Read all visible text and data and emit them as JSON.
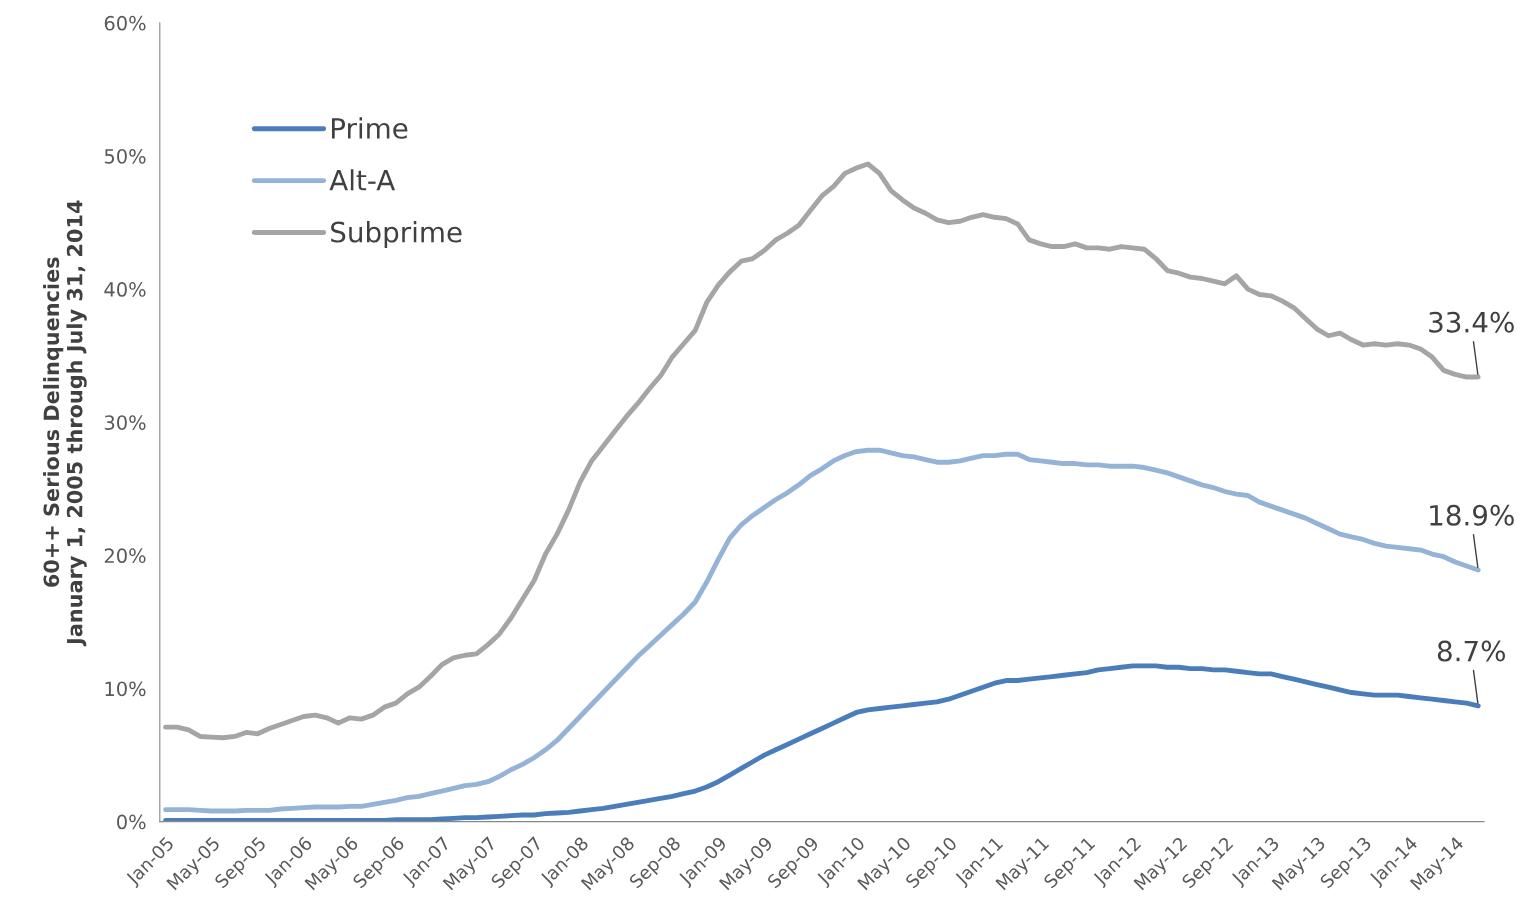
{
  "chart_data": {
    "type": "line",
    "ylabel": "60++ Serious Delinquencies\nJanuary 1, 2005 through July 31, 2014",
    "categories": [
      "Jan-05",
      null,
      null,
      null,
      "May-05",
      null,
      null,
      null,
      "Sep-05",
      null,
      null,
      null,
      "Jan-06",
      null,
      null,
      null,
      "May-06",
      null,
      null,
      null,
      "Sep-06",
      null,
      null,
      null,
      "Jan-07",
      null,
      null,
      null,
      "May-07",
      null,
      null,
      null,
      "Sep-07",
      null,
      null,
      null,
      "Jan-08",
      null,
      null,
      null,
      "May-08",
      null,
      null,
      null,
      "Sep-08",
      null,
      null,
      null,
      "Jan-09",
      null,
      null,
      null,
      "May-09",
      null,
      null,
      null,
      "Sep-09",
      null,
      null,
      null,
      "Jan-10",
      null,
      null,
      null,
      "May-10",
      null,
      null,
      null,
      "Sep-10",
      null,
      null,
      null,
      "Jan-11",
      null,
      null,
      null,
      "May-11",
      null,
      null,
      null,
      "Sep-11",
      null,
      null,
      null,
      "Jan-12",
      null,
      null,
      null,
      "May-12",
      null,
      null,
      null,
      "Sep-12",
      null,
      null,
      null,
      "Jan-13",
      null,
      null,
      null,
      "May-13",
      null,
      null,
      null,
      "Sep-13",
      null,
      null,
      null,
      "Jan-14",
      null,
      null,
      null,
      "May-14",
      null,
      null
    ],
    "series": [
      {
        "name": "Prime",
        "color": "#4a7ebb",
        "values": [
          0.1,
          0.1,
          0.1,
          0.1,
          0.1,
          0.1,
          0.1,
          0.1,
          0.1,
          0.1,
          0.1,
          0.1,
          0.1,
          0.1,
          0.1,
          0.1,
          0.1,
          0.1,
          0.1,
          0.1,
          0.15,
          0.15,
          0.15,
          0.15,
          0.2,
          0.25,
          0.3,
          0.3,
          0.35,
          0.4,
          0.45,
          0.5,
          0.5,
          0.6,
          0.65,
          0.7,
          0.8,
          0.9,
          1.0,
          1.15,
          1.3,
          1.45,
          1.6,
          1.75,
          1.9,
          2.1,
          2.3,
          2.6,
          3.0,
          3.5,
          4.0,
          4.5,
          5.0,
          5.4,
          5.8,
          6.2,
          6.6,
          7.0,
          7.4,
          7.8,
          8.2,
          8.4,
          8.5,
          8.6,
          8.7,
          8.8,
          8.9,
          9.0,
          9.2,
          9.5,
          9.8,
          10.1,
          10.4,
          10.6,
          10.6,
          10.7,
          10.8,
          10.9,
          11.0,
          11.1,
          11.2,
          11.4,
          11.5,
          11.6,
          11.7,
          11.7,
          11.7,
          11.6,
          11.6,
          11.5,
          11.5,
          11.4,
          11.4,
          11.3,
          11.2,
          11.1,
          11.1,
          10.9,
          10.7,
          10.5,
          10.3,
          10.1,
          9.9,
          9.7,
          9.6,
          9.5,
          9.5,
          9.5,
          9.4,
          9.3,
          9.2,
          9.1,
          9.0,
          8.9,
          8.7
        ]
      },
      {
        "name": "Alt-A",
        "color": "#95b3d7",
        "values": [
          0.9,
          0.9,
          0.9,
          0.85,
          0.8,
          0.8,
          0.8,
          0.85,
          0.85,
          0.85,
          0.95,
          1.0,
          1.05,
          1.1,
          1.1,
          1.1,
          1.15,
          1.15,
          1.3,
          1.45,
          1.6,
          1.8,
          1.9,
          2.1,
          2.3,
          2.5,
          2.7,
          2.8,
          3.0,
          3.4,
          3.9,
          4.3,
          4.8,
          5.4,
          6.1,
          7.0,
          7.9,
          8.8,
          9.7,
          10.6,
          11.5,
          12.4,
          13.2,
          14.0,
          14.8,
          15.6,
          16.5,
          18.0,
          19.7,
          21.3,
          22.3,
          23.0,
          23.6,
          24.2,
          24.7,
          25.3,
          26.0,
          26.5,
          27.1,
          27.5,
          27.8,
          27.9,
          27.9,
          27.7,
          27.5,
          27.4,
          27.2,
          27.0,
          27.0,
          27.1,
          27.3,
          27.5,
          27.5,
          27.6,
          27.6,
          27.2,
          27.1,
          27.0,
          26.9,
          26.9,
          26.8,
          26.8,
          26.7,
          26.7,
          26.7,
          26.6,
          26.4,
          26.2,
          25.9,
          25.6,
          25.3,
          25.1,
          24.8,
          24.6,
          24.5,
          24.0,
          23.7,
          23.4,
          23.1,
          22.8,
          22.4,
          22.0,
          21.6,
          21.4,
          21.2,
          20.9,
          20.7,
          20.6,
          20.5,
          20.4,
          20.1,
          19.9,
          19.5,
          19.2,
          18.9
        ]
      },
      {
        "name": "Subprime",
        "color": "#a5a5a5",
        "values": [
          7.1,
          7.1,
          6.9,
          6.4,
          6.35,
          6.3,
          6.4,
          6.7,
          6.6,
          7.0,
          7.3,
          7.6,
          7.9,
          8.0,
          7.8,
          7.4,
          7.8,
          7.7,
          8.0,
          8.6,
          8.9,
          9.6,
          10.1,
          10.9,
          11.8,
          12.3,
          12.5,
          12.6,
          13.3,
          14.1,
          15.3,
          16.7,
          18.1,
          20.1,
          21.6,
          23.4,
          25.5,
          27.1,
          28.2,
          29.3,
          30.4,
          31.4,
          32.5,
          33.5,
          34.9,
          35.9,
          36.9,
          39.0,
          40.3,
          41.3,
          42.1,
          42.3,
          42.9,
          43.7,
          44.2,
          44.8,
          45.9,
          47.0,
          47.7,
          48.7,
          49.1,
          49.4,
          48.7,
          47.4,
          46.7,
          46.1,
          45.7,
          45.2,
          45.0,
          45.1,
          45.4,
          45.6,
          45.4,
          45.3,
          44.9,
          43.7,
          43.4,
          43.2,
          43.2,
          43.4,
          43.1,
          43.1,
          43.0,
          43.2,
          43.1,
          43.0,
          42.3,
          41.4,
          41.2,
          40.9,
          40.8,
          40.6,
          40.4,
          41.0,
          40.0,
          39.6,
          39.5,
          39.1,
          38.6,
          37.8,
          37.0,
          36.5,
          36.7,
          36.2,
          35.8,
          35.9,
          35.8,
          35.9,
          35.8,
          35.5,
          34.9,
          33.9,
          33.6,
          33.4,
          33.4
        ]
      }
    ],
    "ylim": [
      0,
      60
    ],
    "yticks": [
      {
        "value": 0,
        "label": "0%"
      },
      {
        "value": 10,
        "label": "10%"
      },
      {
        "value": 20,
        "label": "20%"
      },
      {
        "value": 30,
        "label": "30%"
      },
      {
        "value": 40,
        "label": "40%"
      },
      {
        "value": 50,
        "label": "50%"
      },
      {
        "value": 60,
        "label": "60%"
      }
    ],
    "annotations": [
      {
        "text": "33.4%",
        "y": 33.4
      },
      {
        "text": "18.9%",
        "y": 18.9
      },
      {
        "text": "8.7%",
        "y": 8.7
      }
    ],
    "legend": "top left",
    "grid": false,
    "marker": "none",
    "line_style": "solid"
  }
}
